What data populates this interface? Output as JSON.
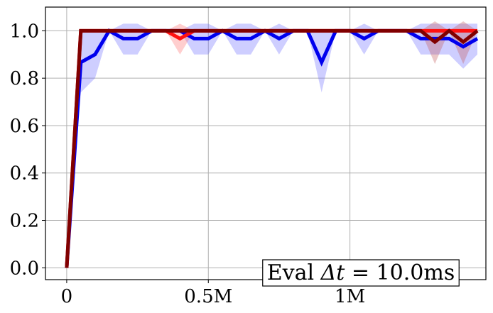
{
  "chart_data": {
    "type": "line",
    "title": "",
    "xlabel": "",
    "ylabel": "",
    "xlim": [
      -75000,
      1480000
    ],
    "ylim": [
      -0.05,
      1.1
    ],
    "x_ticks": [
      {
        "value": 0,
        "label": "0"
      },
      {
        "value": 500000,
        "label": "0.5M"
      },
      {
        "value": 1000000,
        "label": "1M"
      }
    ],
    "y_ticks": [
      {
        "value": 0.0,
        "label": "0.0"
      },
      {
        "value": 0.2,
        "label": "0.2"
      },
      {
        "value": 0.4,
        "label": "0.4"
      },
      {
        "value": 0.6,
        "label": "0.6"
      },
      {
        "value": 0.8,
        "label": "0.8"
      },
      {
        "value": 1.0,
        "label": "1.0"
      }
    ],
    "grid": true,
    "annotation": {
      "prefix": "Eval ",
      "symbol": "Δt",
      "suffix": " = 10.0ms",
      "position": "bottom-right"
    },
    "x": [
      0,
      50000,
      100000,
      150000,
      200000,
      250000,
      300000,
      350000,
      400000,
      450000,
      500000,
      550000,
      600000,
      650000,
      700000,
      750000,
      800000,
      850000,
      900000,
      950000,
      1000000,
      1050000,
      1100000,
      1150000,
      1200000,
      1250000,
      1300000,
      1350000,
      1400000,
      1450000
    ],
    "series": [
      {
        "color": "#0000ee",
        "band_color": "#6666ff",
        "values": [
          0.0,
          0.867,
          0.9,
          1.0,
          0.967,
          0.967,
          1.0,
          1.0,
          1.0,
          0.967,
          0.967,
          1.0,
          0.967,
          0.967,
          1.0,
          0.967,
          1.0,
          1.0,
          0.867,
          1.0,
          1.0,
          0.967,
          1.0,
          1.0,
          1.0,
          0.967,
          0.967,
          0.967,
          0.933,
          0.967
        ],
        "lower": [
          0.0,
          0.74,
          0.8,
          1.0,
          0.9,
          0.9,
          1.0,
          1.0,
          1.0,
          0.9,
          0.9,
          1.0,
          0.9,
          0.9,
          1.0,
          0.9,
          1.0,
          1.0,
          0.74,
          1.0,
          1.0,
          0.9,
          1.0,
          1.0,
          1.0,
          0.9,
          0.9,
          0.9,
          0.84,
          0.9
        ],
        "upper": [
          0.0,
          1.0,
          1.0,
          1.0,
          1.03,
          1.03,
          1.0,
          1.0,
          1.0,
          1.03,
          1.03,
          1.0,
          1.03,
          1.03,
          1.0,
          1.03,
          1.0,
          1.0,
          1.0,
          1.0,
          1.0,
          1.03,
          1.0,
          1.0,
          1.0,
          1.03,
          1.03,
          1.03,
          1.03,
          1.03
        ]
      },
      {
        "color": "#ff1111",
        "band_color": "#ff6666",
        "values": [
          0.0,
          1.0,
          1.0,
          1.0,
          1.0,
          1.0,
          1.0,
          1.0,
          0.967,
          1.0,
          1.0,
          1.0,
          1.0,
          1.0,
          1.0,
          1.0,
          1.0,
          1.0,
          1.0,
          1.0,
          1.0,
          1.0,
          1.0,
          1.0,
          1.0,
          1.0,
          1.0,
          1.0,
          1.0,
          1.0
        ],
        "lower": [
          0.0,
          1.0,
          1.0,
          1.0,
          1.0,
          1.0,
          1.0,
          1.0,
          0.9,
          1.0,
          1.0,
          1.0,
          1.0,
          1.0,
          1.0,
          1.0,
          1.0,
          1.0,
          1.0,
          1.0,
          1.0,
          1.0,
          1.0,
          1.0,
          1.0,
          1.0,
          1.0,
          1.0,
          1.0,
          1.0
        ],
        "upper": [
          0.0,
          1.0,
          1.0,
          1.0,
          1.0,
          1.0,
          1.0,
          1.0,
          1.03,
          1.0,
          1.0,
          1.0,
          1.0,
          1.0,
          1.0,
          1.0,
          1.0,
          1.0,
          1.0,
          1.0,
          1.0,
          1.0,
          1.0,
          1.0,
          1.0,
          1.0,
          1.0,
          1.0,
          1.0,
          1.0
        ]
      },
      {
        "color": "#800000",
        "band_color": "#c05050",
        "values": [
          0.0,
          1.0,
          1.0,
          1.0,
          1.0,
          1.0,
          1.0,
          1.0,
          1.0,
          1.0,
          1.0,
          1.0,
          1.0,
          1.0,
          1.0,
          1.0,
          1.0,
          1.0,
          1.0,
          1.0,
          1.0,
          1.0,
          1.0,
          1.0,
          1.0,
          1.0,
          0.953,
          1.0,
          0.953,
          1.0
        ],
        "lower": [
          0.0,
          1.0,
          1.0,
          1.0,
          1.0,
          1.0,
          1.0,
          1.0,
          1.0,
          1.0,
          1.0,
          1.0,
          1.0,
          1.0,
          1.0,
          1.0,
          1.0,
          1.0,
          1.0,
          1.0,
          1.0,
          1.0,
          1.0,
          1.0,
          1.0,
          1.0,
          0.86,
          1.0,
          0.86,
          1.0
        ],
        "upper": [
          0.0,
          1.0,
          1.0,
          1.0,
          1.0,
          1.0,
          1.0,
          1.0,
          1.0,
          1.0,
          1.0,
          1.0,
          1.0,
          1.0,
          1.0,
          1.0,
          1.0,
          1.0,
          1.0,
          1.0,
          1.0,
          1.0,
          1.0,
          1.0,
          1.0,
          1.0,
          1.04,
          1.0,
          1.04,
          1.0
        ]
      }
    ]
  }
}
